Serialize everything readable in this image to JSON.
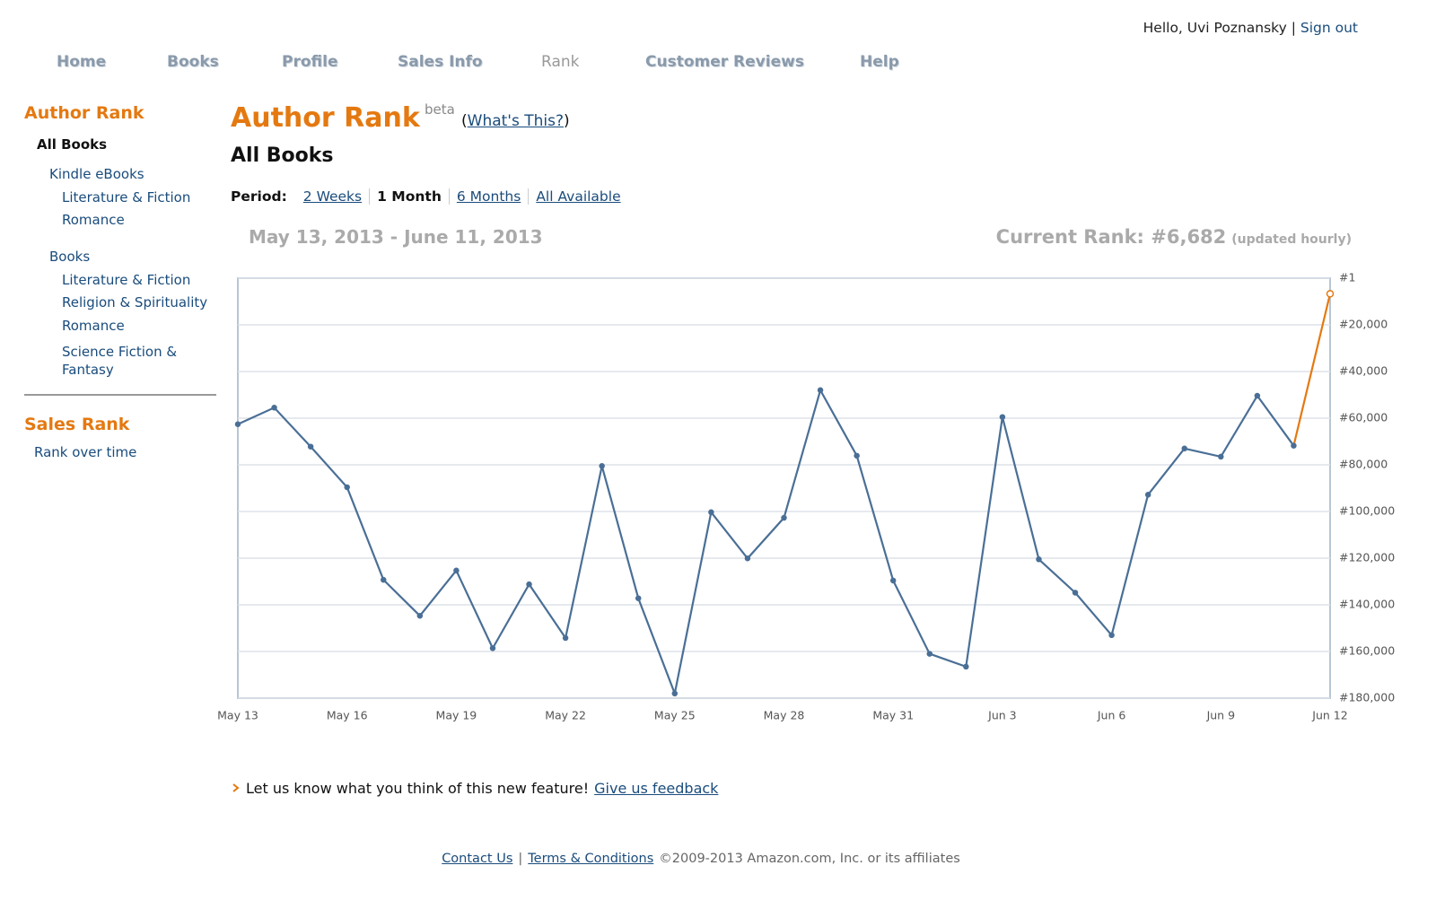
{
  "header": {
    "greeting": "Hello, Uvi Poznansky",
    "separator": "|",
    "sign_out": "Sign out"
  },
  "nav": [
    "Home",
    "Books",
    "Profile",
    "Sales Info",
    "Rank",
    "Customer Reviews",
    "Help"
  ],
  "nav_active": 4,
  "sidebar": {
    "author_rank": {
      "title": "Author Rank",
      "items": [
        "All Books",
        "Kindle eBooks",
        "Literature & Fiction",
        "Romance",
        "Books",
        "Literature & Fiction",
        "Religion & Spirituality",
        "Romance",
        "Science Fiction & Fantasy"
      ]
    },
    "sales_rank": {
      "title": "Sales Rank",
      "items": [
        "Rank over time"
      ]
    }
  },
  "main": {
    "title": "Author Rank",
    "beta": "beta",
    "whats_this_open": "(",
    "whats_this": "What's This?",
    "whats_this_close": ")",
    "subtitle": "All Books",
    "period_label": "Period:",
    "periods": [
      "2 Weeks",
      "1 Month",
      "6 Months",
      "All Available"
    ],
    "period_active": 1,
    "date_range": "May 13, 2013 - June 11, 2013",
    "current_rank": "Current Rank: #6,682",
    "updated": "(updated hourly)"
  },
  "chart_data": {
    "type": "line",
    "categories": [
      "May 13",
      null,
      null,
      "May 16",
      null,
      null,
      "May 19",
      null,
      null,
      "May 22",
      null,
      null,
      "May 25",
      null,
      null,
      "May 28",
      null,
      null,
      "May 31",
      null,
      null,
      "Jun 3",
      null,
      null,
      "Jun 6",
      null,
      null,
      "Jun 9",
      null,
      null,
      "Jun 12"
    ],
    "series": [
      {
        "color": "#4a6f96",
        "last_segment_color": "#e47911",
        "values": [
          62600,
          55500,
          72200,
          89600,
          129300,
          144700,
          125300,
          158600,
          131200,
          154200,
          80500,
          137200,
          178000,
          100300,
          120100,
          102700,
          48000,
          76100,
          129600,
          161000,
          166500,
          59500,
          120500,
          134800,
          153000,
          92800,
          73000,
          76500,
          50400,
          71800,
          6682
        ]
      }
    ],
    "ylim": [
      1,
      180000
    ],
    "y_reversed": true,
    "grid": true,
    "yticks": [
      {
        "value": 1,
        "label": "#1"
      },
      {
        "value": 20000,
        "label": "#20,000"
      },
      {
        "value": 40000,
        "label": "#40,000"
      },
      {
        "value": 60000,
        "label": "#60,000"
      },
      {
        "value": 80000,
        "label": "#80,000"
      },
      {
        "value": 100000,
        "label": "#100,000"
      },
      {
        "value": 120000,
        "label": "#120,000"
      },
      {
        "value": 140000,
        "label": "#140,000"
      },
      {
        "value": 160000,
        "label": "#160,000"
      },
      {
        "value": 180000,
        "label": "#180,000"
      }
    ]
  },
  "feedback": {
    "text": "Let us know what you think of this new feature!",
    "link": "Give us feedback"
  },
  "footer": {
    "contact": "Contact Us",
    "separator": "|",
    "terms": "Terms & Conditions",
    "copyright": "©2009-2013 Amazon.com, Inc. or its affiliates"
  }
}
